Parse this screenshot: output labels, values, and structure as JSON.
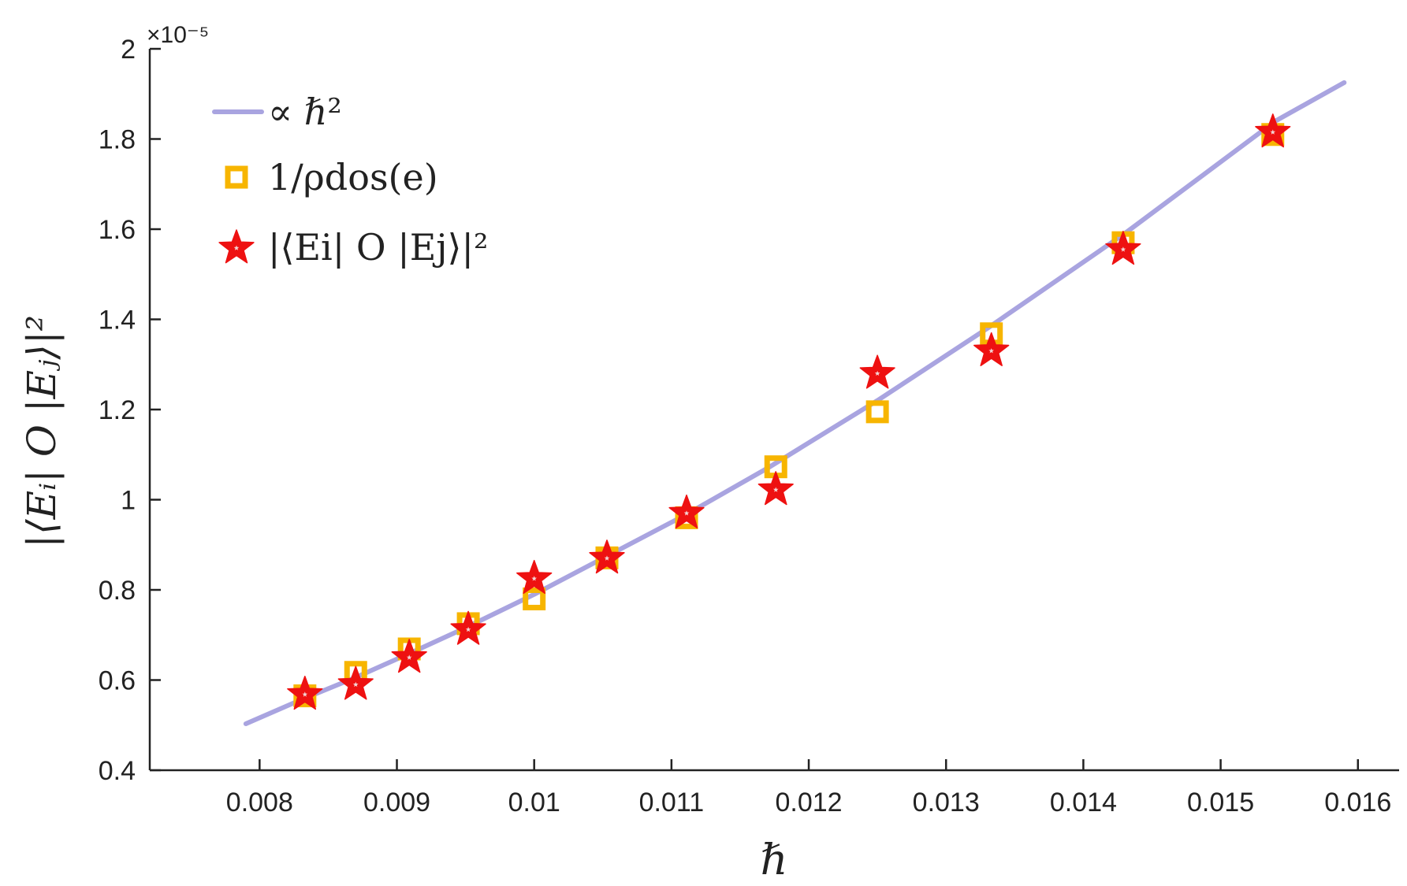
{
  "chart_data": {
    "type": "scatter",
    "title": "",
    "xlabel": "ℏ",
    "ylabel": "|⟨Eᵢ| O |Eⱼ⟩|²",
    "xlim": [
      0.0072,
      0.0163
    ],
    "ylim": [
      0.4,
      2.0
    ],
    "x_ticks": [
      0.008,
      0.009,
      0.01,
      0.011,
      0.012,
      0.013,
      0.014,
      0.015,
      0.016
    ],
    "x_tick_labels": [
      "0.008",
      "0.009",
      "0.01",
      "0.011",
      "0.012",
      "0.013",
      "0.014",
      "0.015",
      "0.016"
    ],
    "y_ticks": [
      0.4,
      0.6,
      0.8,
      1.0,
      1.2,
      1.4,
      1.6,
      1.8,
      2.0
    ],
    "y_tick_labels": [
      "0.4",
      "0.6",
      "0.8",
      "1",
      "1.2",
      "1.4",
      "1.6",
      "1.8",
      "2"
    ],
    "y_exponent_label": "×10⁻⁵",
    "grid": false,
    "legend_position": "top-left",
    "colors": {
      "fit": "#a9a4e0",
      "dos": "#f7b500",
      "matrix": "#ee1111",
      "axis": "#222222"
    },
    "series": [
      {
        "name": "∝ ℏ²",
        "kind": "line",
        "x": [
          0.0079,
          0.0083,
          0.0087,
          0.0091,
          0.0095,
          0.01,
          0.0105,
          0.0111,
          0.0117,
          0.0125,
          0.0133,
          0.0143,
          0.0154,
          0.0159
        ],
        "y": [
          0.503,
          0.556,
          0.606,
          0.66,
          0.716,
          0.79,
          0.87,
          0.966,
          1.07,
          1.22,
          1.38,
          1.59,
          1.84,
          1.925
        ]
      },
      {
        "name": "1/ρdos(e)",
        "kind": "square",
        "x": [
          0.00833,
          0.0087,
          0.00909,
          0.00952,
          0.01,
          0.01053,
          0.01111,
          0.01176,
          0.0125,
          0.01333,
          0.01429,
          0.01538
        ],
        "y": [
          0.565,
          0.617,
          0.669,
          0.725,
          0.78,
          0.871,
          0.96,
          1.073,
          1.195,
          1.368,
          1.57,
          1.81
        ]
      },
      {
        "name": "|⟨Ei| O |Ej⟩|²",
        "kind": "star",
        "x": [
          0.00833,
          0.0087,
          0.00909,
          0.00952,
          0.01,
          0.01053,
          0.01111,
          0.01176,
          0.0125,
          0.01333,
          0.01429,
          0.01538
        ],
        "y": [
          0.568,
          0.59,
          0.65,
          0.712,
          0.825,
          0.87,
          0.97,
          1.022,
          1.28,
          1.33,
          1.555,
          1.815
        ]
      }
    ]
  }
}
